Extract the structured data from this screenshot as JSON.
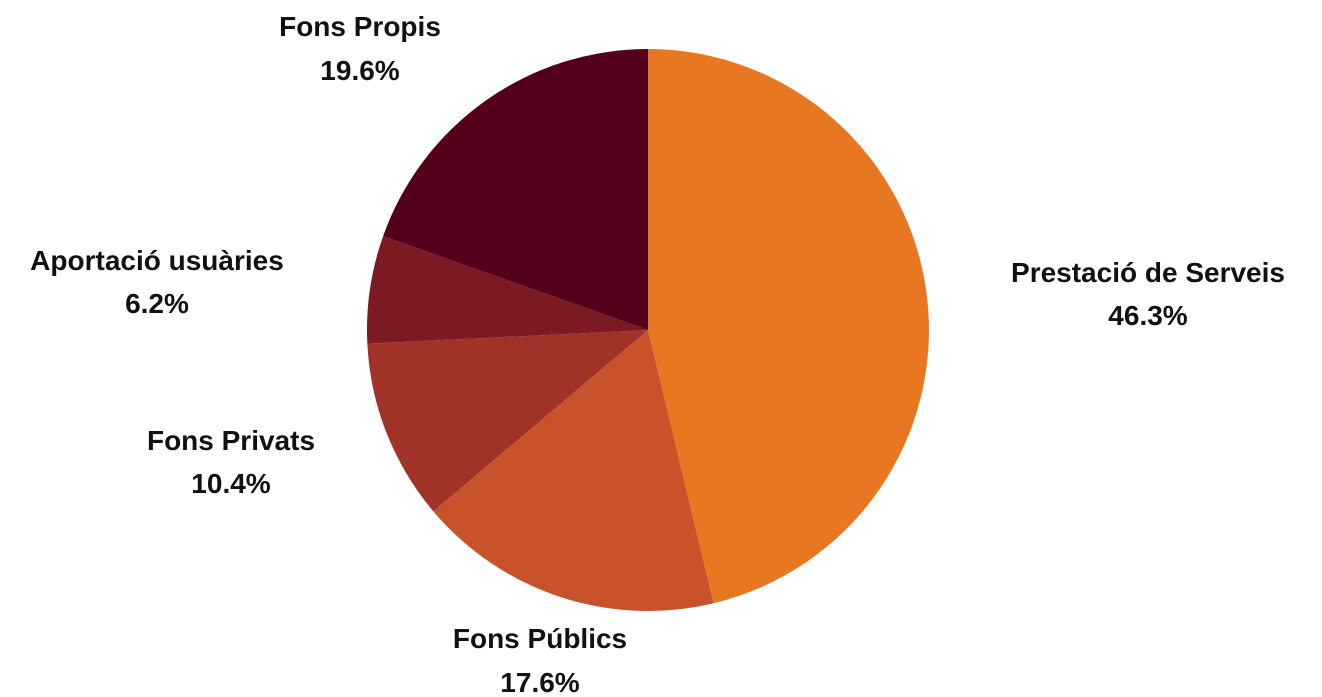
{
  "chart_data": {
    "type": "pie",
    "title": "",
    "start": "12 o'clock",
    "direction": "clockwise",
    "legend": "none",
    "slices": [
      {
        "label": "Prestació de Serveis",
        "value": 46.3,
        "value_label": "46.3%",
        "color": "#E87722"
      },
      {
        "label": "Fons Públics",
        "value": 17.6,
        "value_label": "17.6%",
        "color": "#C8532A"
      },
      {
        "label": "Fons Privats",
        "value": 10.4,
        "value_label": "10.4%",
        "color": "#A03228"
      },
      {
        "label": "Aportació usuàries",
        "value": 6.2,
        "value_label": "6.2%",
        "color": "#7B1A22"
      },
      {
        "label": "Fons Propis",
        "value": 19.6,
        "value_label": "19.6%",
        "color": "#55001A"
      }
    ]
  }
}
